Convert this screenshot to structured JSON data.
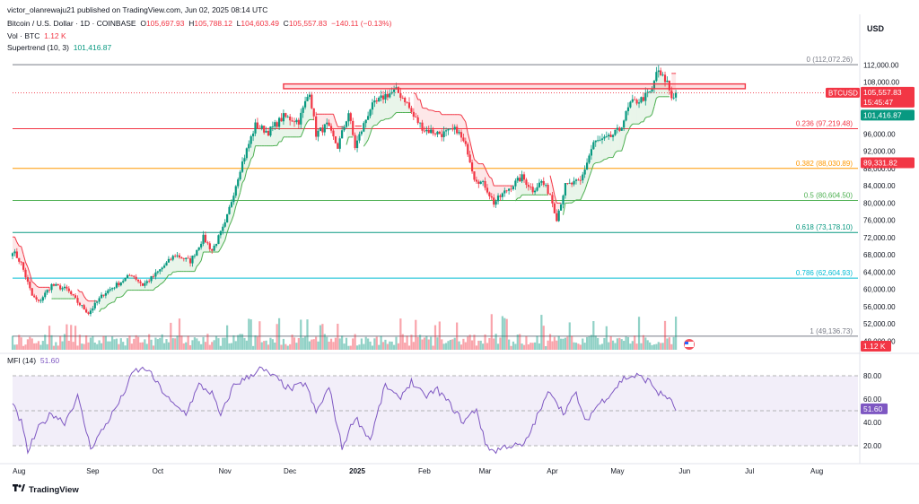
{
  "publish": {
    "text": "victor_olanrewaju21 published on TradingView.com, Jun 02, 2025 08:14 UTC"
  },
  "legend": {
    "symbol": "Bitcoin / U.S. Dollar · 1D · COINBASE",
    "o_label": "O",
    "o": "105,697.93",
    "h_label": "H",
    "h": "105,788.12",
    "l_label": "L",
    "l": "104,603.49",
    "c_label": "C",
    "c": "105,557.83",
    "chg": "−140.11 (−0.13%)",
    "vol_label": "Vol · BTC",
    "vol": "1.12 K",
    "st_label": "Supertrend (10, 3)",
    "st": "101,416.87",
    "mfi_label": "MFI (14)",
    "mfi": "51.60"
  },
  "currency": "USD",
  "badges": {
    "symbol": "BTCUSD",
    "price": "105,557.83",
    "countdown": "15:45:47",
    "supertrend": "101,416.87",
    "level": "89,331.82",
    "volume": "1.12 K",
    "mfi": "51.60"
  },
  "brand": {
    "name": "TradingView"
  },
  "colors": {
    "up": "#089981",
    "down": "#f23645",
    "mfi": "#7e57c2",
    "resistance": "#f23645"
  },
  "chart_data": {
    "type": "candlestick",
    "title": "Bitcoin / U.S. Dollar · 1D · COINBASE",
    "price_axis": {
      "ticks": [
        "112,000.00",
        "108,000.00",
        "104,000.00",
        "100,000.00",
        "96,000.00",
        "92,000.00",
        "88,000.00",
        "84,000.00",
        "80,000.00",
        "76,000.00",
        "72,000.00",
        "68,000.00",
        "64,000.00",
        "60,000.00",
        "56,000.00",
        "52,000.00",
        "48,000.00"
      ],
      "range": [
        46000,
        115000
      ]
    },
    "time_axis": {
      "labels": [
        "Aug",
        "Sep",
        "Oct",
        "Nov",
        "Dec",
        "2025",
        "Feb",
        "Mar",
        "Apr",
        "May",
        "Jun",
        "Jul",
        "Aug"
      ]
    },
    "fib_levels": [
      {
        "ratio": "0",
        "label": "0 (112,072.26)",
        "value": 112072.26,
        "color": "#787b86"
      },
      {
        "ratio": "0.236",
        "label": "0.236 (97,219.48)",
        "value": 97219.48,
        "color": "#f23645"
      },
      {
        "ratio": "0.382",
        "label": "0.382 (88,030.89)",
        "value": 88030.89,
        "color": "#ff9800"
      },
      {
        "ratio": "0.5",
        "label": "0.5 (80,604.50)",
        "value": 80604.5,
        "color": "#4caf50"
      },
      {
        "ratio": "0.618",
        "label": "0.618 (73,178.10)",
        "value": 73178.1,
        "color": "#089981"
      },
      {
        "ratio": "0.786",
        "label": "0.786 (62,604.93)",
        "value": 62604.93,
        "color": "#00bcd4"
      },
      {
        "ratio": "1",
        "label": "1 (49,136.73)",
        "value": 49136.73,
        "color": "#787b86"
      }
    ],
    "resistance_zone": {
      "low": 106500,
      "high": 107600
    },
    "price_anchors": [
      {
        "d": 0,
        "v": 69000
      },
      {
        "d": 4,
        "v": 66000
      },
      {
        "d": 9,
        "v": 58500
      },
      {
        "d": 12,
        "v": 57000
      },
      {
        "d": 18,
        "v": 61000
      },
      {
        "d": 25,
        "v": 60000
      },
      {
        "d": 30,
        "v": 57000
      },
      {
        "d": 35,
        "v": 54500
      },
      {
        "d": 42,
        "v": 59000
      },
      {
        "d": 55,
        "v": 63500
      },
      {
        "d": 60,
        "v": 61000
      },
      {
        "d": 65,
        "v": 63000
      },
      {
        "d": 75,
        "v": 68000
      },
      {
        "d": 82,
        "v": 66500
      },
      {
        "d": 88,
        "v": 72000
      },
      {
        "d": 92,
        "v": 69000
      },
      {
        "d": 98,
        "v": 75000
      },
      {
        "d": 105,
        "v": 88000
      },
      {
        "d": 112,
        "v": 98000
      },
      {
        "d": 118,
        "v": 96500
      },
      {
        "d": 125,
        "v": 100000
      },
      {
        "d": 132,
        "v": 99000
      },
      {
        "d": 137,
        "v": 106000
      },
      {
        "d": 140,
        "v": 96000
      },
      {
        "d": 145,
        "v": 98000
      },
      {
        "d": 150,
        "v": 93000
      },
      {
        "d": 155,
        "v": 101000
      },
      {
        "d": 158,
        "v": 93000
      },
      {
        "d": 165,
        "v": 102000
      },
      {
        "d": 172,
        "v": 105000
      },
      {
        "d": 177,
        "v": 106000
      },
      {
        "d": 181,
        "v": 104000
      },
      {
        "d": 185,
        "v": 100000
      },
      {
        "d": 190,
        "v": 97000
      },
      {
        "d": 198,
        "v": 96000
      },
      {
        "d": 205,
        "v": 97000
      },
      {
        "d": 210,
        "v": 92000
      },
      {
        "d": 213,
        "v": 86000
      },
      {
        "d": 218,
        "v": 84000
      },
      {
        "d": 222,
        "v": 80000
      },
      {
        "d": 228,
        "v": 83000
      },
      {
        "d": 235,
        "v": 86000
      },
      {
        "d": 240,
        "v": 83000
      },
      {
        "d": 244,
        "v": 85000
      },
      {
        "d": 248,
        "v": 82000
      },
      {
        "d": 251,
        "v": 76500
      },
      {
        "d": 255,
        "v": 84000
      },
      {
        "d": 262,
        "v": 85000
      },
      {
        "d": 268,
        "v": 94000
      },
      {
        "d": 275,
        "v": 95000
      },
      {
        "d": 280,
        "v": 97000
      },
      {
        "d": 285,
        "v": 103000
      },
      {
        "d": 290,
        "v": 104000
      },
      {
        "d": 295,
        "v": 106000
      },
      {
        "d": 297,
        "v": 110500
      },
      {
        "d": 300,
        "v": 109000
      },
      {
        "d": 302,
        "v": 108000
      },
      {
        "d": 304,
        "v": 104500
      },
      {
        "d": 306,
        "v": 105557
      }
    ],
    "mfi": {
      "range": [
        10,
        90
      ],
      "ticks": [
        "80.00",
        "60.00",
        "40.00",
        "20.00"
      ],
      "bands": [
        20,
        80
      ],
      "mid": 50,
      "last": 51.6,
      "anchors": [
        {
          "d": 0,
          "v": 55
        },
        {
          "d": 4,
          "v": 40
        },
        {
          "d": 7,
          "v": 15
        },
        {
          "d": 12,
          "v": 35
        },
        {
          "d": 18,
          "v": 48
        },
        {
          "d": 24,
          "v": 40
        },
        {
          "d": 30,
          "v": 62
        },
        {
          "d": 36,
          "v": 18
        },
        {
          "d": 42,
          "v": 35
        },
        {
          "d": 50,
          "v": 60
        },
        {
          "d": 56,
          "v": 84
        },
        {
          "d": 62,
          "v": 86
        },
        {
          "d": 68,
          "v": 70
        },
        {
          "d": 74,
          "v": 55
        },
        {
          "d": 80,
          "v": 48
        },
        {
          "d": 86,
          "v": 72
        },
        {
          "d": 92,
          "v": 65
        },
        {
          "d": 96,
          "v": 45
        },
        {
          "d": 102,
          "v": 72
        },
        {
          "d": 108,
          "v": 78
        },
        {
          "d": 114,
          "v": 86
        },
        {
          "d": 120,
          "v": 80
        },
        {
          "d": 128,
          "v": 68
        },
        {
          "d": 135,
          "v": 74
        },
        {
          "d": 140,
          "v": 48
        },
        {
          "d": 146,
          "v": 70
        },
        {
          "d": 152,
          "v": 18
        },
        {
          "d": 158,
          "v": 45
        },
        {
          "d": 165,
          "v": 25
        },
        {
          "d": 172,
          "v": 72
        },
        {
          "d": 178,
          "v": 60
        },
        {
          "d": 184,
          "v": 75
        },
        {
          "d": 190,
          "v": 62
        },
        {
          "d": 196,
          "v": 68
        },
        {
          "d": 202,
          "v": 55
        },
        {
          "d": 208,
          "v": 40
        },
        {
          "d": 214,
          "v": 52
        },
        {
          "d": 218,
          "v": 22
        },
        {
          "d": 222,
          "v": 15
        },
        {
          "d": 228,
          "v": 20
        },
        {
          "d": 236,
          "v": 20
        },
        {
          "d": 242,
          "v": 45
        },
        {
          "d": 248,
          "v": 68
        },
        {
          "d": 254,
          "v": 48
        },
        {
          "d": 260,
          "v": 65
        },
        {
          "d": 264,
          "v": 40
        },
        {
          "d": 270,
          "v": 55
        },
        {
          "d": 276,
          "v": 65
        },
        {
          "d": 282,
          "v": 78
        },
        {
          "d": 288,
          "v": 80
        },
        {
          "d": 294,
          "v": 75
        },
        {
          "d": 298,
          "v": 65
        },
        {
          "d": 302,
          "v": 62
        },
        {
          "d": 306,
          "v": 51.6
        }
      ]
    }
  }
}
